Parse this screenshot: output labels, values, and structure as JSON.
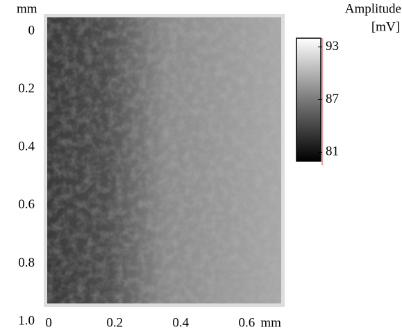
{
  "chart_data": {
    "type": "heatmap",
    "x_label": "mm",
    "y_label": "mm",
    "xlim": [
      -0.015,
      0.715
    ],
    "xticks": [
      0,
      0.2,
      0.4,
      0.6
    ],
    "ylim": [
      -0.06,
      1.0
    ],
    "yticks": [
      0,
      0.2,
      0.4,
      0.6,
      0.8,
      {
        "value": 1,
        "label": "1.0"
      }
    ],
    "colorbar": {
      "title": [
        "Amplitude",
        "[mV]"
      ],
      "clim": [
        80,
        94
      ],
      "ticks": [
        93,
        87,
        81
      ]
    }
  }
}
